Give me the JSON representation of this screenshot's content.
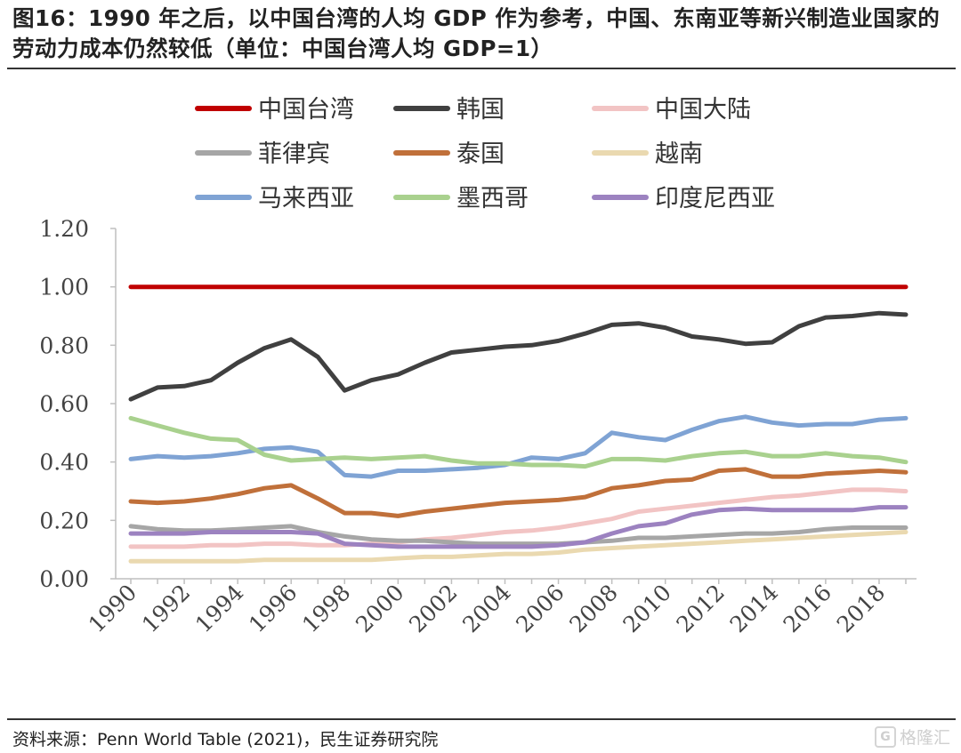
{
  "title": "图16：1990 年之后，以中国台湾的人均 GDP 作为参考，中国、东南亚等新兴制造业国家的劳动力成本仍然较低（单位：中国台湾人均 GDP=1）",
  "source": "资料来源：Penn World Table (2021)，民生证券研究院",
  "watermark": "格隆汇",
  "watermark_icon": "G",
  "chart_data": {
    "type": "line",
    "x": [
      1990,
      1991,
      1992,
      1993,
      1994,
      1995,
      1996,
      1997,
      1998,
      1999,
      2000,
      2001,
      2002,
      2003,
      2004,
      2005,
      2006,
      2007,
      2008,
      2009,
      2010,
      2011,
      2012,
      2013,
      2014,
      2015,
      2016,
      2017,
      2018,
      2019
    ],
    "x_tick_labels": [
      "1990",
      "1992",
      "1994",
      "1996",
      "1998",
      "2000",
      "2002",
      "2004",
      "2006",
      "2008",
      "2010",
      "2012",
      "2014",
      "2016",
      "2018"
    ],
    "y_tick_labels": [
      "0.00",
      "0.20",
      "0.40",
      "0.60",
      "0.80",
      "1.00",
      "1.20"
    ],
    "ylim": [
      0,
      1.2
    ],
    "legend_position": "top",
    "grid": false,
    "series": [
      {
        "name": "中国台湾",
        "color": "#c00000",
        "values": [
          1.0,
          1.0,
          1.0,
          1.0,
          1.0,
          1.0,
          1.0,
          1.0,
          1.0,
          1.0,
          1.0,
          1.0,
          1.0,
          1.0,
          1.0,
          1.0,
          1.0,
          1.0,
          1.0,
          1.0,
          1.0,
          1.0,
          1.0,
          1.0,
          1.0,
          1.0,
          1.0,
          1.0,
          1.0,
          1.0
        ]
      },
      {
        "name": "韩国",
        "color": "#404040",
        "values": [
          0.615,
          0.655,
          0.66,
          0.68,
          0.74,
          0.79,
          0.82,
          0.76,
          0.645,
          0.68,
          0.7,
          0.74,
          0.775,
          0.785,
          0.795,
          0.8,
          0.815,
          0.84,
          0.87,
          0.875,
          0.86,
          0.83,
          0.82,
          0.805,
          0.81,
          0.865,
          0.895,
          0.9,
          0.91,
          0.905
        ]
      },
      {
        "name": "中国大陆",
        "color": "#f2c4c4",
        "values": [
          0.11,
          0.11,
          0.11,
          0.115,
          0.115,
          0.12,
          0.12,
          0.115,
          0.115,
          0.12,
          0.125,
          0.135,
          0.14,
          0.15,
          0.16,
          0.165,
          0.175,
          0.19,
          0.205,
          0.23,
          0.24,
          0.25,
          0.26,
          0.27,
          0.28,
          0.285,
          0.295,
          0.305,
          0.305,
          0.3
        ]
      },
      {
        "name": "菲律宾",
        "color": "#a6a6a6",
        "values": [
          0.18,
          0.17,
          0.165,
          0.165,
          0.17,
          0.175,
          0.18,
          0.16,
          0.145,
          0.135,
          0.13,
          0.13,
          0.125,
          0.12,
          0.12,
          0.12,
          0.12,
          0.125,
          0.13,
          0.14,
          0.14,
          0.145,
          0.15,
          0.155,
          0.155,
          0.16,
          0.17,
          0.175,
          0.175,
          0.175
        ]
      },
      {
        "name": "泰国",
        "color": "#c0703a",
        "values": [
          0.265,
          0.26,
          0.265,
          0.275,
          0.29,
          0.31,
          0.32,
          0.275,
          0.225,
          0.225,
          0.215,
          0.23,
          0.24,
          0.25,
          0.26,
          0.265,
          0.27,
          0.28,
          0.31,
          0.32,
          0.335,
          0.34,
          0.37,
          0.375,
          0.35,
          0.35,
          0.36,
          0.365,
          0.37,
          0.365
        ]
      },
      {
        "name": "越南",
        "color": "#ead9b0",
        "values": [
          0.06,
          0.06,
          0.06,
          0.06,
          0.06,
          0.065,
          0.065,
          0.065,
          0.065,
          0.065,
          0.07,
          0.075,
          0.075,
          0.08,
          0.085,
          0.085,
          0.09,
          0.1,
          0.105,
          0.11,
          0.115,
          0.12,
          0.125,
          0.13,
          0.135,
          0.14,
          0.145,
          0.15,
          0.155,
          0.16
        ]
      },
      {
        "name": "马来西亚",
        "color": "#7fa3d4",
        "values": [
          0.41,
          0.42,
          0.415,
          0.42,
          0.43,
          0.445,
          0.45,
          0.435,
          0.355,
          0.35,
          0.37,
          0.37,
          0.375,
          0.38,
          0.39,
          0.415,
          0.41,
          0.43,
          0.5,
          0.485,
          0.475,
          0.51,
          0.54,
          0.555,
          0.535,
          0.525,
          0.53,
          0.53,
          0.545,
          0.55
        ]
      },
      {
        "name": "墨西哥",
        "color": "#a9d18e",
        "values": [
          0.55,
          0.525,
          0.5,
          0.48,
          0.475,
          0.425,
          0.405,
          0.41,
          0.415,
          0.41,
          0.415,
          0.42,
          0.405,
          0.395,
          0.395,
          0.39,
          0.39,
          0.385,
          0.41,
          0.41,
          0.405,
          0.42,
          0.43,
          0.435,
          0.42,
          0.42,
          0.43,
          0.42,
          0.415,
          0.4
        ]
      },
      {
        "name": "印度尼西亚",
        "color": "#9c82c0",
        "values": [
          0.155,
          0.155,
          0.155,
          0.16,
          0.16,
          0.16,
          0.16,
          0.155,
          0.12,
          0.115,
          0.11,
          0.11,
          0.11,
          0.11,
          0.11,
          0.11,
          0.115,
          0.125,
          0.155,
          0.18,
          0.19,
          0.22,
          0.235,
          0.24,
          0.235,
          0.235,
          0.235,
          0.235,
          0.245,
          0.245
        ]
      }
    ]
  }
}
